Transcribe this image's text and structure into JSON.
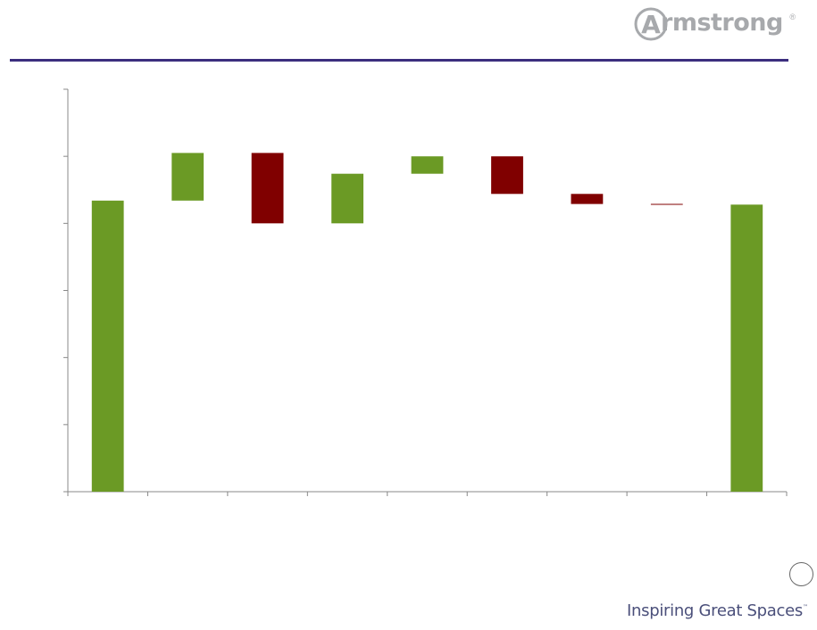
{
  "brand": {
    "logo_text": "rmstrong",
    "logo_initial": "A",
    "registered_mark": "®",
    "tagline": "Inspiring Great Spaces",
    "tagline_mark": "™",
    "colors": {
      "logo_gray": "#a7a9ac",
      "rule": "#3b2e7e",
      "tagline": "#4a4f7a"
    }
  },
  "chart_data": {
    "type": "bar",
    "subtype": "waterfall",
    "title": "",
    "xlabel": "",
    "ylabel": "",
    "ylim": [
      0,
      6
    ],
    "y_tick_count": 7,
    "category_slots": 9,
    "grid": false,
    "legend": "none",
    "colors": {
      "increase": "#6b9a25",
      "decrease": "#800000"
    },
    "bars": [
      {
        "slot": 0,
        "kind": "total",
        "start": 0,
        "end": 4.34
      },
      {
        "slot": 1,
        "kind": "increase",
        "start": 4.34,
        "end": 5.05
      },
      {
        "slot": 2,
        "kind": "decrease",
        "start": 5.05,
        "end": 4.0
      },
      {
        "slot": 3,
        "kind": "increase",
        "start": 4.0,
        "end": 4.74
      },
      {
        "slot": 4,
        "kind": "increase",
        "start": 4.74,
        "end": 5.0
      },
      {
        "slot": 5,
        "kind": "decrease",
        "start": 5.0,
        "end": 4.44
      },
      {
        "slot": 6,
        "kind": "decrease",
        "start": 4.44,
        "end": 4.29
      },
      {
        "slot": 7,
        "kind": "decrease",
        "start": 4.29,
        "end": 4.28
      },
      {
        "slot": 8,
        "kind": "total",
        "start": 0,
        "end": 4.28
      }
    ]
  }
}
